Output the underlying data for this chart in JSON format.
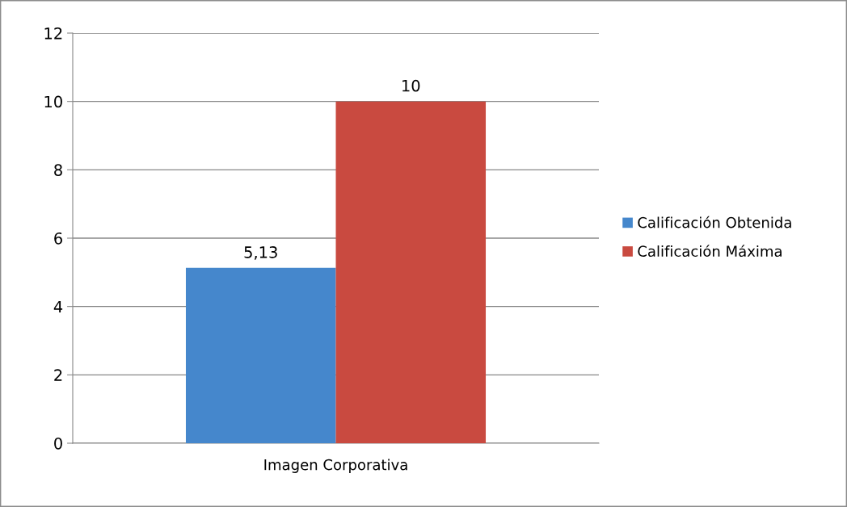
{
  "chart_data": {
    "type": "bar",
    "categories": [
      "Imagen Corporativa"
    ],
    "series": [
      {
        "name": "Calificación Obtenida",
        "color": "#4587cc",
        "values": [
          5.13
        ],
        "value_labels": [
          "5,13"
        ]
      },
      {
        "name": "Calificación Máxima",
        "color": "#c94a40",
        "values": [
          10
        ],
        "value_labels": [
          "10"
        ]
      }
    ],
    "ylim": [
      0,
      12
    ],
    "yticks": [
      0,
      2,
      4,
      6,
      8,
      10,
      12
    ],
    "grid": "y",
    "legend": "right"
  }
}
